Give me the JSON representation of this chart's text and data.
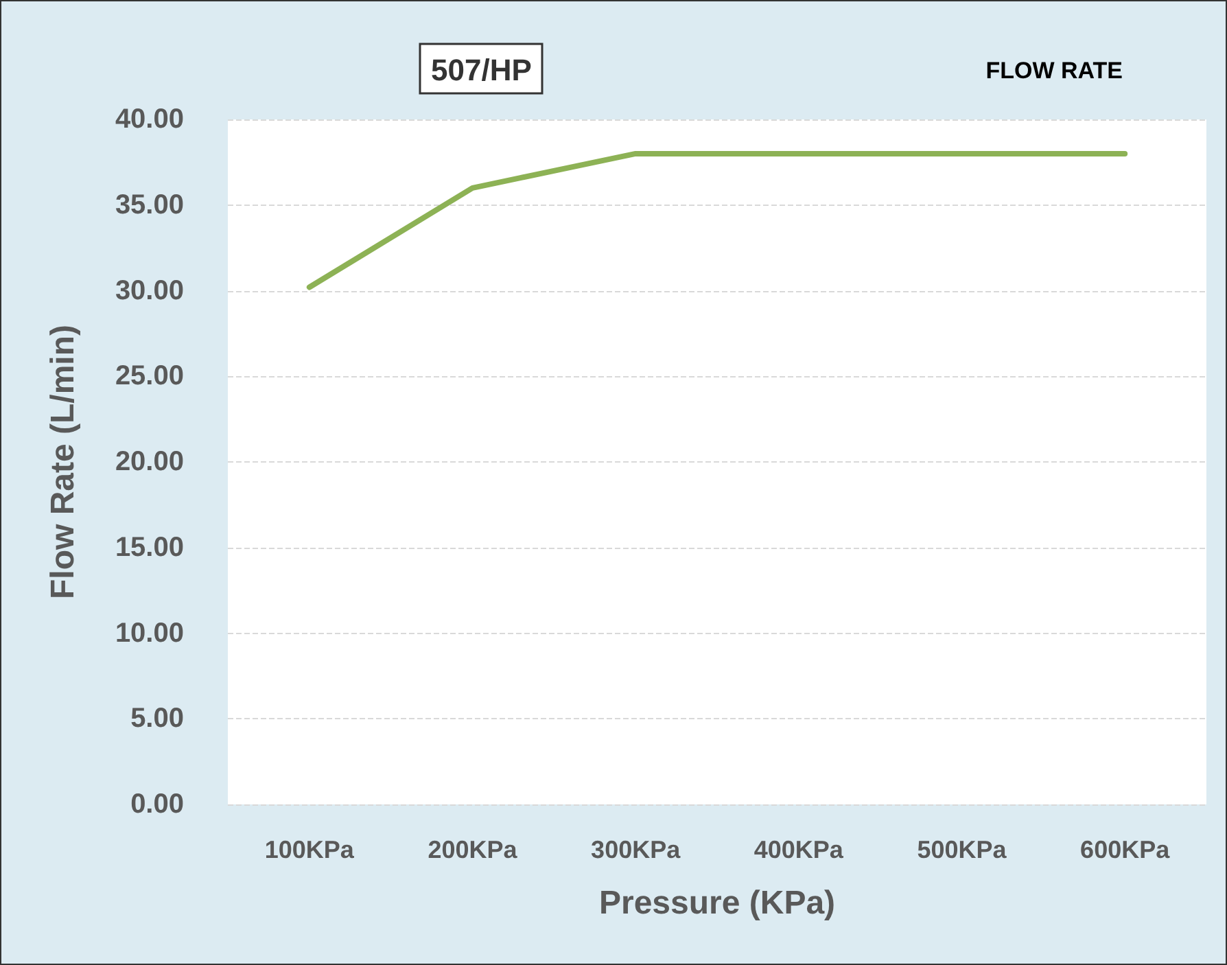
{
  "chart_data": {
    "type": "line",
    "title": "507/HP",
    "subtitle": "FLOW RATE",
    "xlabel": "Pressure (KPa)",
    "ylabel": "Flow Rate (L/min)",
    "categories": [
      "100KPa",
      "200KPa",
      "300KPa",
      "400KPa",
      "500KPa",
      "600KPa"
    ],
    "series": [
      {
        "color": "#8db255",
        "values": [
          30.2,
          36,
          38,
          38,
          38,
          38
        ]
      }
    ],
    "ylim": [
      0,
      40
    ],
    "yticks": [
      {
        "value": 0,
        "label": "0.00"
      },
      {
        "value": 5,
        "label": "5.00"
      },
      {
        "value": 10,
        "label": "10.00"
      },
      {
        "value": 15,
        "label": "15.00"
      },
      {
        "value": 20,
        "label": "20.00"
      },
      {
        "value": 25,
        "label": "25.00"
      },
      {
        "value": 30,
        "label": "30.00"
      },
      {
        "value": 35,
        "label": "35.00"
      },
      {
        "value": 40,
        "label": "40.00"
      }
    ],
    "grid": "y",
    "marker": "none",
    "line_style": "solid"
  }
}
